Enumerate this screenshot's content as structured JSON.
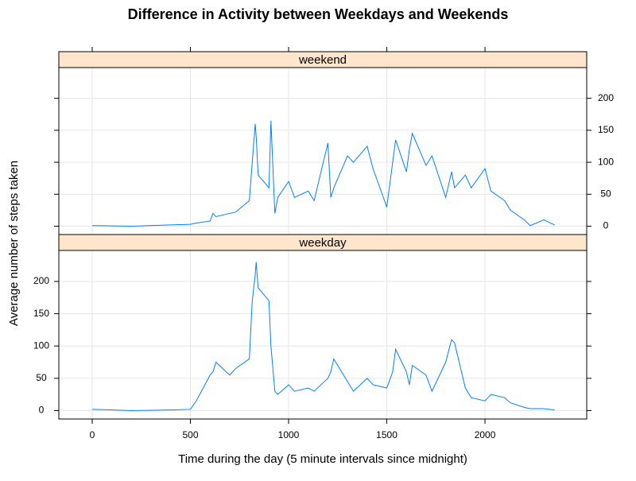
{
  "chart_data": {
    "type": "line",
    "title": "Difference in Activity between Weekdays and Weekends",
    "xlabel": "Time during the day (5 minute intervals since midnight)",
    "ylabel": "Average number of steps taken",
    "xlim": [
      -170,
      2518
    ],
    "xticks": [
      0,
      500,
      1000,
      1500,
      2000
    ],
    "ylim": [
      -13,
      248
    ],
    "yticks": [
      0,
      50,
      100,
      150,
      200
    ],
    "grid": true,
    "x": [
      0,
      200,
      400,
      500,
      530,
      600,
      615,
      630,
      700,
      730,
      800,
      815,
      830,
      835,
      845,
      900,
      910,
      930,
      945,
      1000,
      1030,
      1100,
      1130,
      1200,
      1215,
      1230,
      1300,
      1330,
      1400,
      1430,
      1500,
      1530,
      1545,
      1600,
      1615,
      1630,
      1700,
      1730,
      1800,
      1830,
      1845,
      1900,
      1930,
      2000,
      2030,
      2100,
      2130,
      2200,
      2230,
      2300,
      2355
    ],
    "series": [
      {
        "name": "weekend",
        "color": "#0080ff",
        "values": [
          1,
          0,
          2,
          3,
          5,
          8,
          20,
          15,
          20,
          22,
          40,
          100,
          160,
          140,
          80,
          60,
          165,
          20,
          45,
          70,
          45,
          55,
          40,
          130,
          45,
          60,
          110,
          100,
          125,
          90,
          30,
          100,
          135,
          85,
          120,
          145,
          95,
          110,
          45,
          85,
          60,
          80,
          60,
          90,
          55,
          40,
          25,
          10,
          1,
          10,
          2
        ]
      },
      {
        "name": "weekday",
        "color": "#0080ff",
        "values": [
          2,
          0,
          1,
          2,
          15,
          55,
          60,
          75,
          55,
          65,
          80,
          170,
          210,
          230,
          190,
          170,
          100,
          30,
          25,
          40,
          30,
          35,
          30,
          50,
          60,
          80,
          45,
          30,
          50,
          40,
          35,
          60,
          95,
          60,
          40,
          70,
          55,
          30,
          75,
          110,
          105,
          35,
          20,
          15,
          25,
          20,
          12,
          5,
          3,
          3,
          1
        ]
      }
    ]
  }
}
